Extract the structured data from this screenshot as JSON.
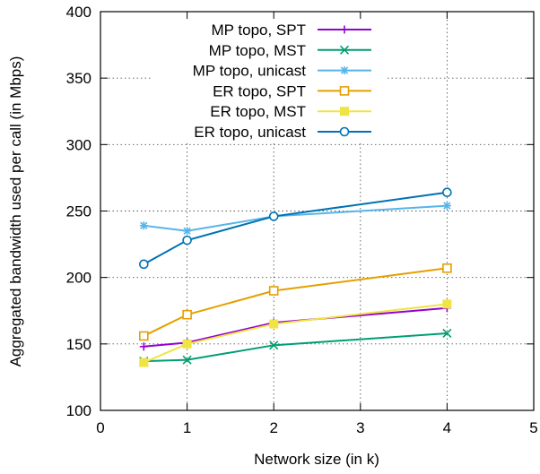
{
  "chart_data": {
    "type": "line",
    "xlabel": "Network size (in k)",
    "ylabel": "Aggregated bandwidth used per call (in Mbps)",
    "xlim": [
      0,
      5
    ],
    "ylim": [
      100,
      400
    ],
    "xticks": [
      0,
      1,
      2,
      3,
      4,
      5
    ],
    "yticks": [
      100,
      150,
      200,
      250,
      300,
      350,
      400
    ],
    "grid": true,
    "legend_position": "top-center",
    "series": [
      {
        "name": "MP topo, SPT",
        "color": "#9400d3",
        "marker": "plus",
        "x": [
          0.5,
          1,
          2,
          4
        ],
        "y": [
          148,
          151,
          166,
          177
        ]
      },
      {
        "name": "MP topo, MST",
        "color": "#009e73",
        "marker": "cross",
        "x": [
          0.5,
          1,
          2,
          4
        ],
        "y": [
          137,
          138,
          149,
          158
        ]
      },
      {
        "name": "MP topo, unicast",
        "color": "#56b4e9",
        "marker": "star",
        "x": [
          0.5,
          1,
          2,
          4
        ],
        "y": [
          239,
          235,
          246,
          254
        ]
      },
      {
        "name": "ER topo, SPT",
        "color": "#e69f00",
        "marker": "square",
        "x": [
          0.5,
          1,
          2,
          4
        ],
        "y": [
          156,
          172,
          190,
          207
        ]
      },
      {
        "name": "ER topo, MST",
        "color": "#f0e442",
        "marker": "filled-square",
        "x": [
          0.5,
          1,
          2,
          4
        ],
        "y": [
          136,
          150,
          165,
          180
        ]
      },
      {
        "name": "ER topo, unicast",
        "color": "#0072b2",
        "marker": "circle",
        "x": [
          0.5,
          1,
          2,
          4
        ],
        "y": [
          210,
          228,
          246,
          264
        ]
      }
    ]
  }
}
